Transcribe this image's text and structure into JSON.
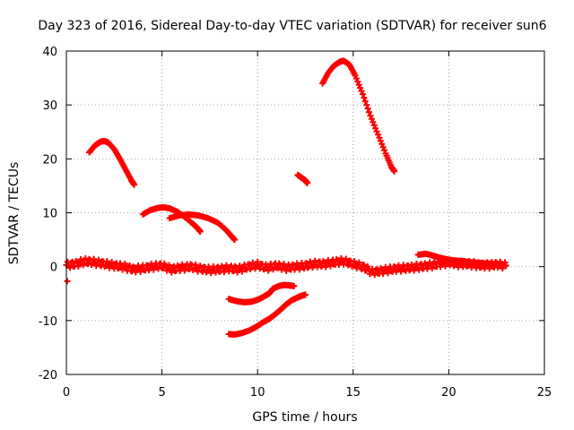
{
  "chart_data": {
    "type": "scatter",
    "title": "Day 323 of 2016, Sidereal Day-to-day VTEC variation (SDTVAR) for receiver sun6",
    "xlabel": "GPS time / hours",
    "ylabel": "SDTVAR / TECUs",
    "xlim": [
      0,
      25
    ],
    "ylim": [
      -20,
      40
    ],
    "xticks": [
      0,
      5,
      10,
      15,
      20,
      25
    ],
    "yticks": [
      -20,
      -10,
      0,
      10,
      20,
      30,
      40
    ],
    "xtick_labels": [
      "0",
      "5",
      "10",
      "15",
      "20",
      "25"
    ],
    "ytick_labels": [
      "-20",
      "-10",
      "0",
      "10",
      "20",
      "30",
      "40"
    ],
    "grid": true,
    "marker": "plus",
    "color": "#ff0000",
    "segments": [
      {
        "name": "near-zero band",
        "x": [
          0.0,
          0.5,
          1.0,
          1.5,
          2.0,
          2.5,
          3.0,
          3.5,
          4.0,
          4.5,
          5.0,
          5.5,
          6.0,
          6.5,
          7.0,
          7.5,
          8.0,
          8.5,
          9.0,
          9.5,
          10.0,
          10.5,
          11.0,
          11.5,
          12.0,
          12.5,
          13.0,
          13.5,
          14.0,
          14.5,
          15.0,
          15.5,
          16.0,
          16.5,
          17.0,
          17.5,
          18.0,
          18.5,
          19.0,
          19.5,
          20.0,
          20.5,
          21.0,
          21.5,
          22.0,
          22.5,
          23.0
        ],
        "y": [
          0.3,
          0.5,
          1.0,
          0.8,
          0.5,
          0.2,
          0.0,
          -0.5,
          -0.3,
          0.0,
          0.2,
          -0.5,
          -0.2,
          0.0,
          -0.4,
          -0.6,
          -0.5,
          -0.3,
          -0.5,
          0.0,
          0.3,
          -0.2,
          0.2,
          -0.2,
          0.0,
          0.2,
          0.5,
          0.5,
          0.8,
          1.0,
          0.5,
          0.0,
          -1.0,
          -0.8,
          -0.5,
          -0.3,
          -0.2,
          0.0,
          0.2,
          0.5,
          0.8,
          0.5,
          0.5,
          0.3,
          0.2,
          0.4,
          0.2
        ]
      },
      {
        "name": "early outlier",
        "x": [
          0.05
        ],
        "y": [
          -2.7
        ]
      },
      {
        "name": "arc 1",
        "x": [
          1.2,
          1.5,
          1.8,
          2.0,
          2.2,
          2.5,
          2.8,
          3.1,
          3.4,
          3.55
        ],
        "y": [
          21.2,
          22.5,
          23.2,
          23.3,
          23.0,
          21.8,
          20.0,
          18.0,
          16.0,
          15.2
        ]
      },
      {
        "name": "arc 2",
        "x": [
          4.0,
          4.4,
          4.8,
          5.1,
          5.4,
          5.8,
          6.2,
          6.6,
          6.9,
          7.0
        ],
        "y": [
          9.7,
          10.5,
          10.9,
          11.0,
          10.8,
          10.2,
          9.2,
          8.0,
          7.0,
          6.5
        ]
      },
      {
        "name": "arc 3",
        "x": [
          5.4,
          5.9,
          6.4,
          6.9,
          7.4,
          7.9,
          8.3,
          8.6,
          8.8
        ],
        "y": [
          9.0,
          9.5,
          9.7,
          9.5,
          9.0,
          8.2,
          7.0,
          5.8,
          5.0
        ]
      },
      {
        "name": "arc 4",
        "x": [
          8.5,
          8.8,
          9.2,
          9.6,
          10.0,
          10.3,
          10.6,
          10.9,
          11.2,
          11.5,
          11.8,
          12.1,
          12.3,
          12.5
        ],
        "y": [
          -12.5,
          -12.6,
          -12.3,
          -11.8,
          -11.0,
          -10.3,
          -9.7,
          -8.9,
          -8.0,
          -7.0,
          -6.2,
          -5.7,
          -5.4,
          -5.2
        ]
      },
      {
        "name": "arc 5",
        "x": [
          8.5,
          8.9,
          9.3,
          9.7,
          10.1,
          10.4,
          10.6,
          10.8,
          11.1,
          11.4,
          11.7,
          11.9
        ],
        "y": [
          -6.0,
          -6.4,
          -6.6,
          -6.5,
          -6.0,
          -5.4,
          -5.0,
          -4.1,
          -3.6,
          -3.4,
          -3.5,
          -3.6
        ]
      },
      {
        "name": "arc 6",
        "x": [
          12.1,
          12.3,
          12.5,
          12.6
        ],
        "y": [
          17.0,
          16.5,
          16.0,
          15.5
        ]
      },
      {
        "name": "arc 7",
        "x": [
          13.4,
          13.7,
          14.0,
          14.3,
          14.5,
          14.8,
          15.1,
          15.5,
          15.9,
          16.3,
          16.7,
          17.0,
          17.15
        ],
        "y": [
          34.0,
          36.0,
          37.3,
          38.0,
          38.2,
          37.5,
          35.5,
          32.0,
          28.0,
          24.5,
          21.0,
          18.5,
          17.7
        ]
      },
      {
        "name": "arc 8",
        "x": [
          18.4,
          18.8,
          19.2,
          19.6,
          20.0,
          20.4,
          20.8,
          21.2,
          21.6,
          22.0,
          22.4,
          22.8
        ],
        "y": [
          2.2,
          2.4,
          2.0,
          1.6,
          1.3,
          1.1,
          1.0,
          0.8,
          0.7,
          0.6,
          0.5,
          0.5
        ]
      }
    ]
  }
}
